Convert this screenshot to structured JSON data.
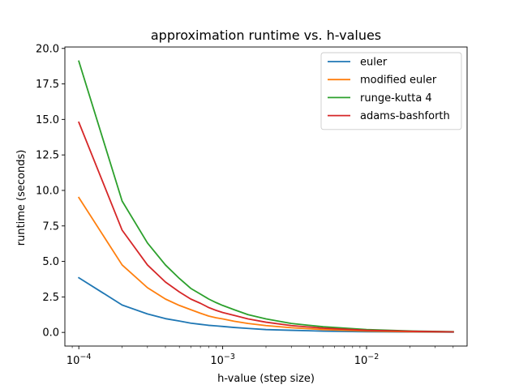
{
  "chart_data": {
    "type": "line",
    "title": "approximation runtime vs. h-values",
    "xlabel": "h-value (step size)",
    "ylabel": "runtime (seconds)",
    "xscale": "log",
    "xlim": [
      8e-05,
      0.05
    ],
    "ylim": [
      -0.96,
      20.1
    ],
    "xticks": [
      {
        "value": 0.0001,
        "base": "10",
        "exp": "−4"
      },
      {
        "value": 0.001,
        "base": "10",
        "exp": "−3"
      },
      {
        "value": 0.01,
        "base": "10",
        "exp": "−2"
      }
    ],
    "yticks": [
      "0.0",
      "2.5",
      "5.0",
      "7.5",
      "10.0",
      "12.5",
      "15.0",
      "17.5",
      "20.0"
    ],
    "legend_position": "top-right",
    "grid": false,
    "x": [
      0.0001,
      0.0002,
      0.0003,
      0.0004,
      0.0005,
      0.0006,
      0.0007,
      0.0008,
      0.0009,
      0.001,
      0.0012,
      0.0015,
      0.002,
      0.003,
      0.005,
      0.01,
      0.02,
      0.04
    ],
    "series": [
      {
        "name": "euler",
        "color": "#1f77b4",
        "values": [
          3.85,
          1.93,
          1.3,
          0.97,
          0.8,
          0.65,
          0.57,
          0.5,
          0.46,
          0.42,
          0.35,
          0.28,
          0.2,
          0.15,
          0.09,
          0.05,
          0.03,
          0.02
        ]
      },
      {
        "name": "modified euler",
        "color": "#ff7f0e",
        "values": [
          9.5,
          4.75,
          3.15,
          2.35,
          1.9,
          1.6,
          1.35,
          1.15,
          1.03,
          0.95,
          0.79,
          0.63,
          0.48,
          0.33,
          0.2,
          0.1,
          0.05,
          0.03
        ]
      },
      {
        "name": "runge-kutta 4",
        "color": "#2ca02c",
        "values": [
          19.1,
          9.25,
          6.3,
          4.75,
          3.8,
          3.1,
          2.7,
          2.35,
          2.1,
          1.9,
          1.6,
          1.25,
          0.95,
          0.63,
          0.4,
          0.2,
          0.1,
          0.05
        ]
      },
      {
        "name": "adams-bashforth",
        "color": "#d62728",
        "values": [
          14.8,
          7.2,
          4.75,
          3.55,
          2.85,
          2.35,
          2.05,
          1.75,
          1.55,
          1.4,
          1.2,
          0.95,
          0.72,
          0.48,
          0.3,
          0.15,
          0.08,
          0.04
        ]
      }
    ]
  }
}
